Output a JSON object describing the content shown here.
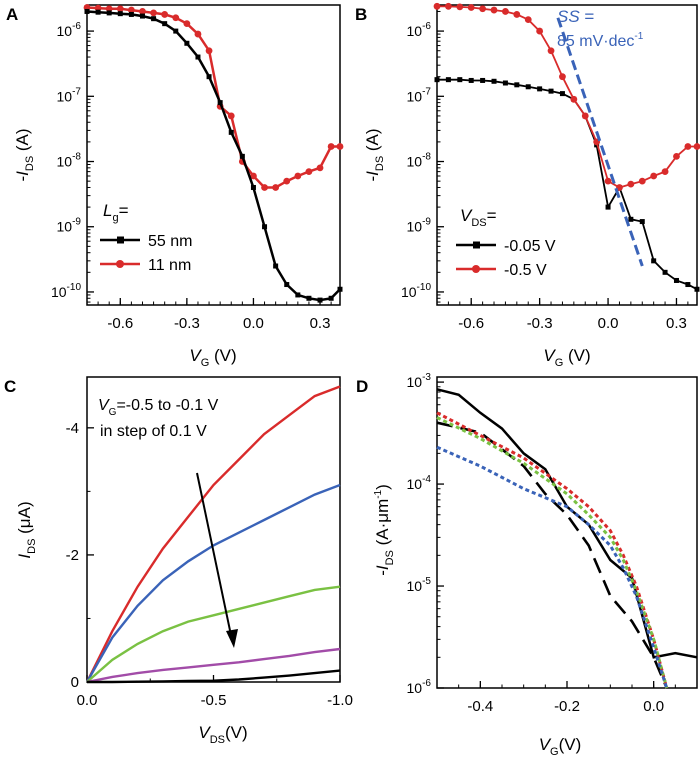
{
  "chart_data": [
    {
      "panel": "A",
      "type": "line",
      "yscale": "log",
      "xlabel": "V_G (V)",
      "ylabel": "-I_DS (A)",
      "xlim": [
        -0.75,
        0.39
      ],
      "ylim_exp": [
        -10.2,
        -5.6
      ],
      "xticks": [
        "-0.6",
        "-0.3",
        "0.0",
        "0.3"
      ],
      "yticks": [
        "10^-10",
        "10^-9",
        "10^-8",
        "10^-7",
        "10^-6"
      ],
      "legend_title": "L_g =",
      "legend_position": "bottom-left",
      "series": [
        {
          "name": "55 nm",
          "color": "#000000",
          "marker": "square",
          "x": [
            -0.75,
            -0.7,
            -0.65,
            -0.6,
            -0.55,
            -0.5,
            -0.45,
            -0.4,
            -0.35,
            -0.3,
            -0.25,
            -0.2,
            -0.15,
            -0.1,
            -0.05,
            0.0,
            0.05,
            0.1,
            0.15,
            0.2,
            0.25,
            0.3,
            0.35,
            0.39
          ],
          "y": [
            2e-06,
            1.95e-06,
            1.9e-06,
            1.85e-06,
            1.8e-06,
            1.7e-06,
            1.55e-06,
            1.3e-06,
            1e-06,
            6.5e-07,
            4e-07,
            2e-07,
            8e-08,
            2.8e-08,
            1.2e-08,
            4e-09,
            1e-09,
            2.5e-10,
            1.3e-10,
            9e-11,
            8e-11,
            7.5e-11,
            8e-11,
            1.1e-10
          ]
        },
        {
          "name": "11 nm",
          "color": "#d92b2b",
          "marker": "circle",
          "x": [
            -0.75,
            -0.7,
            -0.65,
            -0.6,
            -0.55,
            -0.5,
            -0.45,
            -0.4,
            -0.35,
            -0.3,
            -0.25,
            -0.2,
            -0.15,
            -0.1,
            -0.05,
            0.0,
            0.05,
            0.1,
            0.15,
            0.2,
            0.25,
            0.3,
            0.35,
            0.39
          ],
          "y": [
            2.3e-06,
            2.25e-06,
            2.2e-06,
            2.2e-06,
            2.1e-06,
            2e-06,
            1.9e-06,
            1.8e-06,
            1.6e-06,
            1.3e-06,
            9e-07,
            5e-07,
            7e-08,
            5e-08,
            1e-08,
            6e-09,
            4e-09,
            4e-09,
            5e-09,
            6e-09,
            7e-09,
            8e-09,
            1.7e-08,
            1.7e-08
          ]
        }
      ]
    },
    {
      "panel": "B",
      "type": "line",
      "yscale": "log",
      "xlabel": "V_G (V)",
      "ylabel": "-I_DS (A)",
      "xlim": [
        -0.75,
        0.39
      ],
      "ylim_exp": [
        -10.2,
        -5.6
      ],
      "xticks": [
        "-0.6",
        "-0.3",
        "0.0",
        "0.3"
      ],
      "yticks": [
        "10^-10",
        "10^-9",
        "10^-8",
        "10^-7",
        "10^-6"
      ],
      "legend_title": "V_DS =",
      "legend_position": "bottom-left",
      "annotation": "SS = 85 mV·dec^-1",
      "annotation_color": "#3a63b8",
      "series": [
        {
          "name": "-0.05 V",
          "color": "#000000",
          "marker": "square",
          "x": [
            -0.75,
            -0.7,
            -0.65,
            -0.6,
            -0.55,
            -0.5,
            -0.45,
            -0.4,
            -0.35,
            -0.3,
            -0.25,
            -0.2,
            -0.15,
            -0.1,
            -0.05,
            0.0,
            0.05,
            0.1,
            0.15,
            0.2,
            0.25,
            0.3,
            0.35,
            0.39
          ],
          "y": [
            1.8e-07,
            1.8e-07,
            1.8e-07,
            1.75e-07,
            1.75e-07,
            1.7e-07,
            1.6e-07,
            1.5e-07,
            1.4e-07,
            1.3e-07,
            1.2e-07,
            1.1e-07,
            9e-08,
            5e-08,
            1.8e-08,
            2e-09,
            4e-09,
            1.3e-09,
            1.2e-09,
            3e-10,
            2e-10,
            1.5e-10,
            1.3e-10,
            1.1e-10
          ]
        },
        {
          "name": "-0.5 V",
          "color": "#d92b2b",
          "marker": "circle",
          "x": [
            -0.75,
            -0.7,
            -0.65,
            -0.6,
            -0.55,
            -0.5,
            -0.45,
            -0.4,
            -0.35,
            -0.3,
            -0.25,
            -0.2,
            -0.15,
            -0.1,
            -0.05,
            0.0,
            0.05,
            0.1,
            0.15,
            0.2,
            0.25,
            0.3,
            0.35,
            0.39
          ],
          "y": [
            2.4e-06,
            2.4e-06,
            2.35e-06,
            2.3e-06,
            2.2e-06,
            2.1e-06,
            2e-06,
            1.8e-06,
            1.5e-06,
            1e-06,
            5e-07,
            2e-07,
            9e-08,
            5e-08,
            2e-08,
            5e-09,
            4e-09,
            4.5e-09,
            5e-09,
            6e-09,
            7e-09,
            1.2e-08,
            1.7e-08,
            1.7e-08
          ]
        },
        {
          "name": "SS fit",
          "color": "#3a63b8",
          "style": "dashed",
          "x": [
            -0.22,
            0.15
          ],
          "y": [
            1.6e-06,
            2.5e-10
          ]
        }
      ]
    },
    {
      "panel": "C",
      "type": "line",
      "xlabel": "V_DS (V)",
      "ylabel": "I_DS (μA)",
      "xlim": [
        0.0,
        -1.0
      ],
      "ylim": [
        0,
        -4.8
      ],
      "xticks": [
        "0.0",
        "-0.5",
        "-1.0"
      ],
      "yticks": [
        "0",
        "-2",
        "-4"
      ],
      "annotation_line1": "V_G =-0.5 to -0.1 V",
      "annotation_line2": "in step of 0.1 V",
      "series": [
        {
          "color": "#d92b2b",
          "x": [
            0,
            -0.1,
            -0.2,
            -0.3,
            -0.4,
            -0.5,
            -0.6,
            -0.7,
            -0.8,
            -0.9,
            -1.0
          ],
          "y": [
            0,
            -0.8,
            -1.5,
            -2.1,
            -2.6,
            -3.1,
            -3.5,
            -3.9,
            -4.2,
            -4.5,
            -4.65
          ]
        },
        {
          "color": "#3a63b8",
          "x": [
            0,
            -0.1,
            -0.2,
            -0.3,
            -0.4,
            -0.5,
            -0.6,
            -0.7,
            -0.8,
            -0.9,
            -1.0
          ],
          "y": [
            0,
            -0.7,
            -1.2,
            -1.6,
            -1.9,
            -2.15,
            -2.35,
            -2.55,
            -2.75,
            -2.95,
            -3.1
          ]
        },
        {
          "color": "#7ac143",
          "x": [
            0,
            -0.1,
            -0.2,
            -0.3,
            -0.4,
            -0.5,
            -0.6,
            -0.7,
            -0.8,
            -0.9,
            -1.0
          ],
          "y": [
            0,
            -0.35,
            -0.6,
            -0.8,
            -0.95,
            -1.05,
            -1.15,
            -1.25,
            -1.35,
            -1.45,
            -1.5
          ]
        },
        {
          "color": "#a24ca8",
          "x": [
            0,
            -0.1,
            -0.2,
            -0.3,
            -0.4,
            -0.5,
            -0.6,
            -0.7,
            -0.8,
            -0.9,
            -1.0
          ],
          "y": [
            0,
            -0.08,
            -0.14,
            -0.19,
            -0.23,
            -0.27,
            -0.31,
            -0.36,
            -0.41,
            -0.47,
            -0.52
          ]
        },
        {
          "color": "#000000",
          "x": [
            0,
            -0.1,
            -0.2,
            -0.3,
            -0.4,
            -0.5,
            -0.6,
            -0.7,
            -0.8,
            -0.9,
            -1.0
          ],
          "y": [
            0,
            0,
            -0.005,
            -0.01,
            -0.015,
            -0.02,
            -0.04,
            -0.07,
            -0.1,
            -0.14,
            -0.18
          ]
        }
      ]
    },
    {
      "panel": "D",
      "type": "line",
      "yscale": "log",
      "xlabel": "V_G (V)",
      "ylabel": "-I_DS (A·μm^-1)",
      "xlim": [
        -0.5,
        0.1
      ],
      "ylim_exp": [
        -6,
        -2.95
      ],
      "xticks": [
        "-0.4",
        "-0.2",
        "0.0"
      ],
      "yticks": [
        "10^-6",
        "10^-5",
        "10^-4",
        "10^-3"
      ],
      "series": [
        {
          "color": "#000000",
          "style": "solid",
          "x": [
            -0.5,
            -0.45,
            -0.4,
            -0.35,
            -0.3,
            -0.25,
            -0.2,
            -0.15,
            -0.1,
            -0.05,
            0.0,
            0.05,
            0.1
          ],
          "y": [
            0.00085,
            0.00075,
            0.0005,
            0.00035,
            0.0002,
            0.00014,
            6e-05,
            4e-05,
            1.8e-05,
            1.2e-05,
            2e-06,
            2.2e-06,
            2e-06
          ]
        },
        {
          "color": "#000000",
          "style": "longdash",
          "x": [
            -0.5,
            -0.4,
            -0.3,
            -0.25,
            -0.2,
            -0.15,
            -0.1,
            -0.05,
            0.0,
            0.03
          ],
          "y": [
            0.0004,
            0.00032,
            0.00015,
            8e-05,
            5e-05,
            2.5e-05,
            8e-06,
            4.5e-06,
            2e-06,
            1e-06
          ]
        },
        {
          "color": "#d92b2b",
          "style": "dotted",
          "x": [
            -0.5,
            -0.4,
            -0.3,
            -0.2,
            -0.15,
            -0.1,
            -0.07,
            -0.04,
            0.0,
            0.03
          ],
          "y": [
            0.0005,
            0.0003,
            0.00018,
            9e-05,
            6e-05,
            3.5e-05,
            2e-05,
            1e-05,
            3e-06,
            1e-06
          ]
        },
        {
          "color": "#7ac143",
          "style": "dotted",
          "x": [
            -0.5,
            -0.4,
            -0.3,
            -0.2,
            -0.15,
            -0.1,
            -0.07,
            -0.04,
            0.0,
            0.03
          ],
          "y": [
            0.00045,
            0.00028,
            0.00016,
            8e-05,
            5e-05,
            3e-05,
            1.8e-05,
            9e-06,
            3e-06,
            1e-06
          ]
        },
        {
          "color": "#3a63b8",
          "style": "dotted",
          "x": [
            -0.5,
            -0.4,
            -0.3,
            -0.2,
            -0.15,
            -0.1,
            -0.07,
            -0.04,
            0.0,
            0.03
          ],
          "y": [
            0.00023,
            0.00015,
            9e-05,
            6e-05,
            4e-05,
            2.5e-05,
            1.5e-05,
            8e-06,
            2.5e-06,
            1e-06
          ]
        }
      ]
    }
  ],
  "panel_labels": [
    "A",
    "B",
    "C",
    "D"
  ]
}
